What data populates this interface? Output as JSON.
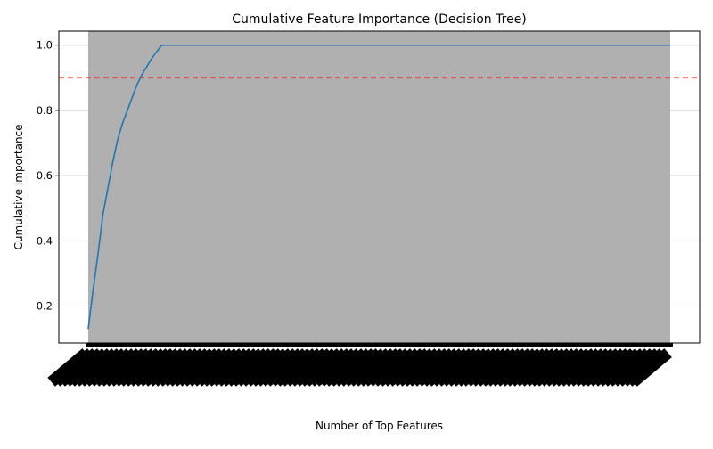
{
  "chart_data": {
    "type": "line",
    "title": "Cumulative Feature Importance (Decision Tree)",
    "xlabel": "Number of Top Features",
    "ylabel": "Cumulative Importance",
    "yticks": [
      0.2,
      0.4,
      0.6,
      0.8,
      1.0
    ],
    "ytick_labels": [
      "0.2",
      "0.4",
      "0.6",
      "0.8",
      "1.0"
    ],
    "ylim": [
      0.087,
      1.043
    ],
    "n_features": 120,
    "x_tick_labels_legible": false,
    "grid": "horizontal",
    "threshold": {
      "y": 0.9,
      "color": "#ff0000",
      "style": "dashed"
    },
    "series": [
      {
        "color": "#1f77b4",
        "points": [
          [
            1,
            0.13
          ],
          [
            2,
            0.25
          ],
          [
            3,
            0.36
          ],
          [
            4,
            0.48
          ],
          [
            5,
            0.56
          ],
          [
            6,
            0.64
          ],
          [
            7,
            0.71
          ],
          [
            8,
            0.76
          ],
          [
            9,
            0.8
          ],
          [
            10,
            0.84
          ],
          [
            11,
            0.88
          ],
          [
            12,
            0.91
          ],
          [
            13,
            0.935
          ],
          [
            14,
            0.96
          ],
          [
            15,
            0.98
          ],
          [
            16,
            1.0
          ],
          [
            120,
            1.0
          ]
        ]
      }
    ],
    "fill_color": "#b0b0b0"
  }
}
